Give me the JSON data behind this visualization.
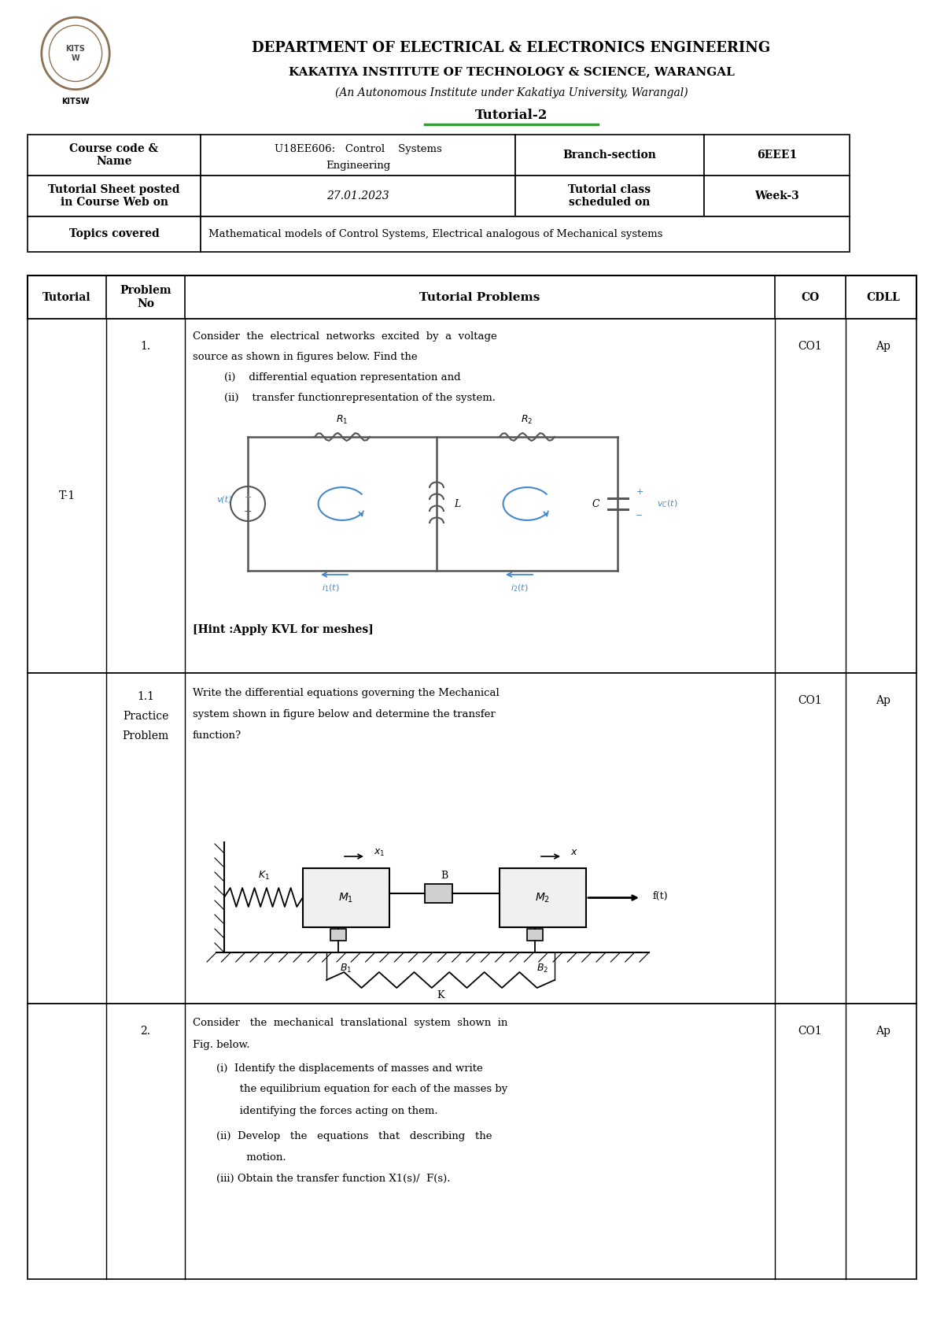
{
  "title_line1": "DEPARTMENT OF ELECTRICAL & ELECTRONICS ENGINEERING",
  "title_line2": "KAKATIYA INSTITUTE OF TECHNOLOGY & SCIENCE, WARANGAL",
  "title_line3": "(An Autonomous Institute under Kakatiya University, Warangal)",
  "title_line4": "Tutorial-2",
  "course_code": "U18EE606:   Control    Systems\nEngineering",
  "branch_section": "Branch-section",
  "branch_val": "6EEE1",
  "sheet_posted": "Tutorial Sheet posted\nin Course Web on",
  "date": "27.01.2023",
  "tutorial_class": "Tutorial class\nscheduled on",
  "week": "Week-3",
  "topics_label": "Topics covered",
  "topics_val": "Mathematical models of Control Systems, Electrical analogous of Mechanical systems",
  "col_headers": [
    "Tutorial",
    "Problem\nNo",
    "Tutorial Problems",
    "CO",
    "CDLL"
  ],
  "background": "#ffffff",
  "border_color": "#000000",
  "text_color": "#000000"
}
